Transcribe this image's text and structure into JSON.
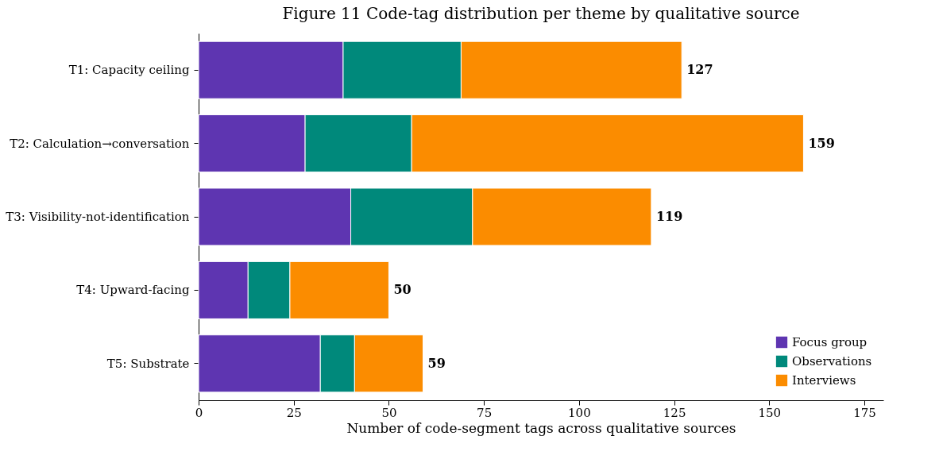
{
  "chart_data": {
    "type": "bar",
    "orientation": "horizontal",
    "stacked": true,
    "title": "Figure 11 Code-tag distribution per theme by qualitative source",
    "xlabel": "Number of code-segment tags across qualitative sources",
    "categories": [
      "T1: Capacity ceiling",
      "T2: Calculation→conversation",
      "T3: Visibility-not-identification",
      "T4: Upward-facing",
      "T5: Substrate"
    ],
    "series": [
      {
        "name": "Focus group",
        "color": "#5e35b1",
        "values": [
          38,
          28,
          40,
          13,
          32
        ]
      },
      {
        "name": "Observations",
        "color": "#00897b",
        "values": [
          31,
          28,
          32,
          11,
          9
        ]
      },
      {
        "name": "Interviews",
        "color": "#fb8c00",
        "values": [
          58,
          103,
          47,
          26,
          18
        ]
      }
    ],
    "totals": [
      "127",
      "159",
      "119",
      "50",
      "59"
    ],
    "xlim": [
      0,
      180
    ],
    "xticks": [
      0,
      25,
      50,
      75,
      100,
      125,
      150,
      175
    ],
    "grid": false,
    "legend": "bottom right"
  }
}
